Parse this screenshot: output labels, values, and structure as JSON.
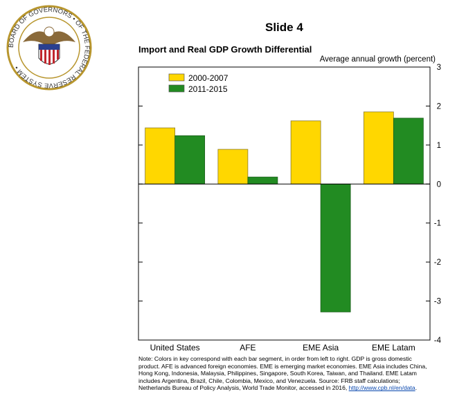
{
  "header": {
    "slide_label": "Slide 4",
    "seal_text": "BOARD OF GOVERNORS OF THE FEDERAL RESERVE SYSTEM"
  },
  "chart_data": {
    "type": "bar",
    "title": "Import and Real GDP Growth Differential",
    "ylabel": "Average annual growth (percent)",
    "categories": [
      "United States",
      "AFE",
      "EME Asia",
      "EME Latam"
    ],
    "series": [
      {
        "name": "2000-2007",
        "values": [
          1.44,
          0.89,
          1.62,
          1.85
        ],
        "color": "#FFD700"
      },
      {
        "name": "2011-2015",
        "values": [
          1.24,
          0.18,
          -3.28,
          1.69
        ],
        "color": "#228B22"
      }
    ],
    "ylim": [
      -4,
      3
    ],
    "yticks": [
      "3",
      "2",
      "1",
      "0",
      "-1",
      "-2",
      "-3",
      "-4"
    ],
    "grid": false,
    "legend": "top-left",
    "y_axis_side": "right"
  },
  "note": {
    "text": "Note: Colors in key correspond with each bar segment, in order from left to right. GDP is gross domestic product. AFE is advanced foreign economies. EME is emerging market economies. EME Asia includes China, Hong Kong, Indonesia, Malaysia, Philippines, Singapore, South Korea, Taiwan, and Thailand. EME Latam includes Argentina, Brazil, Chile, Colombia, Mexico, and Venezuela. Source: FRB staff calculations; Netherlands Bureau of Policy Analysis, World Trade Monitor, accessed in 2016, ",
    "link": "http://www.cpb.nl/en/data",
    "end": "."
  }
}
